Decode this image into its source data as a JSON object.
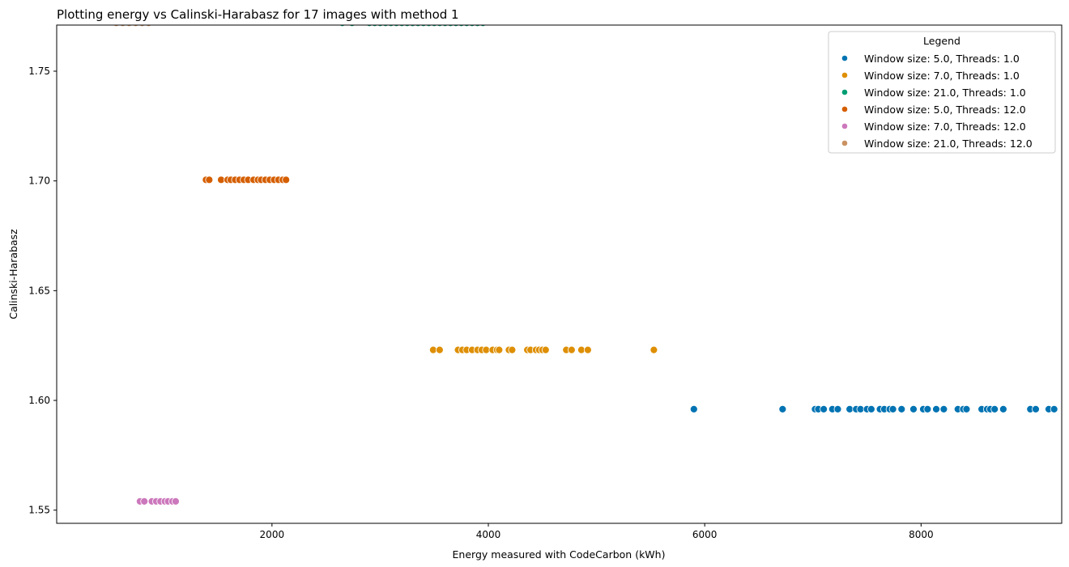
{
  "chart_data": {
    "type": "scatter",
    "title": "Plotting energy vs Calinski-Harabasz for 17 images with method 1",
    "xlabel": "Energy measured with CodeCarbon (kWh)",
    "ylabel": "Calinski-Harabasz",
    "xlim": [
      10,
      9300
    ],
    "ylim": [
      1.544,
      1.771
    ],
    "xticks": [
      2000,
      4000,
      6000,
      8000
    ],
    "xtick_labels": [
      "2000",
      "4000",
      "6000",
      "8000"
    ],
    "yticks": [
      1.55,
      1.6,
      1.65,
      1.7,
      1.75
    ],
    "ytick_labels": [
      "1.55",
      "1.60",
      "1.65",
      "1.70",
      "1.75"
    ],
    "grid": false,
    "legend": {
      "title": "Legend",
      "placement": "top-right"
    },
    "series": [
      {
        "name": "Window size: 5.0, Threads: 1.0",
        "color": "#0173b2",
        "x": [
          5900,
          6720,
          7020,
          7050,
          7100,
          7180,
          7230,
          7340,
          7400,
          7440,
          7500,
          7540,
          7620,
          7660,
          7710,
          7740,
          7820,
          7930,
          8020,
          8060,
          8140,
          8210,
          8340,
          8390,
          8420,
          8560,
          8610,
          8640,
          8680,
          8760,
          9010,
          9060,
          9180,
          9230
        ],
        "y": [
          1.596,
          1.596,
          1.596,
          1.596,
          1.596,
          1.596,
          1.596,
          1.596,
          1.596,
          1.596,
          1.596,
          1.596,
          1.596,
          1.596,
          1.596,
          1.596,
          1.596,
          1.596,
          1.596,
          1.596,
          1.596,
          1.596,
          1.596,
          1.596,
          1.596,
          1.596,
          1.596,
          1.596,
          1.596,
          1.596,
          1.596,
          1.596,
          1.596,
          1.596
        ]
      },
      {
        "name": "Window size: 7.0, Threads: 1.0",
        "color": "#de8f05",
        "x": [
          3490,
          3550,
          3720,
          3760,
          3800,
          3850,
          3900,
          3940,
          3980,
          4040,
          4080,
          4100,
          4190,
          4220,
          4360,
          4390,
          4440,
          4470,
          4500,
          4530,
          4720,
          4770,
          4860,
          4920,
          5530
        ],
        "y": [
          1.623,
          1.623,
          1.623,
          1.623,
          1.623,
          1.623,
          1.623,
          1.623,
          1.623,
          1.623,
          1.623,
          1.623,
          1.623,
          1.623,
          1.623,
          1.623,
          1.623,
          1.623,
          1.623,
          1.623,
          1.623,
          1.623,
          1.623,
          1.623,
          1.623
        ]
      },
      {
        "name": "Window size: 21.0, Threads: 1.0",
        "color": "#029e73",
        "x": [
          2650,
          2740,
          2900,
          2950,
          3000,
          3050,
          3100,
          3150,
          3200,
          3250,
          3300,
          3350,
          3400,
          3450,
          3500,
          3550,
          3600,
          3650,
          3700,
          3750,
          3800,
          3850,
          3900,
          3950
        ],
        "y": [
          1.772,
          1.772,
          1.772,
          1.772,
          1.772,
          1.772,
          1.772,
          1.772,
          1.772,
          1.772,
          1.772,
          1.772,
          1.772,
          1.772,
          1.772,
          1.772,
          1.772,
          1.772,
          1.772,
          1.772,
          1.772,
          1.772,
          1.772,
          1.772
        ]
      },
      {
        "name": "Window size: 5.0, Threads: 12.0",
        "color": "#d55e00",
        "x": [
          1390,
          1420,
          1530,
          1590,
          1620,
          1660,
          1700,
          1740,
          1780,
          1830,
          1870,
          1900,
          1940,
          1980,
          2020,
          2060,
          2100,
          2130
        ],
        "y": [
          1.7005,
          1.7005,
          1.7005,
          1.7005,
          1.7005,
          1.7005,
          1.7005,
          1.7005,
          1.7005,
          1.7005,
          1.7005,
          1.7005,
          1.7005,
          1.7005,
          1.7005,
          1.7005,
          1.7005,
          1.7005
        ]
      },
      {
        "name": "Window size: 7.0, Threads: 12.0",
        "color": "#cc78bc",
        "x": [
          780,
          820,
          890,
          930,
          970,
          1010,
          1040,
          1080,
          1110
        ],
        "y": [
          1.554,
          1.554,
          1.554,
          1.554,
          1.554,
          1.554,
          1.554,
          1.554,
          1.554
        ]
      },
      {
        "name": "Window size: 21.0, Threads: 12.0",
        "color": "#ca9161",
        "x": [
          560,
          620,
          680,
          740,
          800,
          860
        ],
        "y": [
          1.772,
          1.772,
          1.772,
          1.772,
          1.772,
          1.772
        ]
      }
    ]
  }
}
